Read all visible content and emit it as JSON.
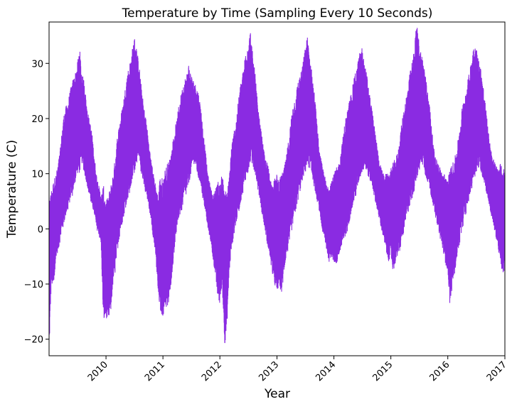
{
  "colors": {
    "series": "#8a2be2",
    "axis": "#000000",
    "background": "#ffffff"
  },
  "chart_data": {
    "type": "line",
    "title": "Temperature by Time (Sampling Every 10 Seconds)",
    "xlabel": "Year",
    "ylabel": "Temperature (C)",
    "x_ticks": [
      "2010",
      "2011",
      "2012",
      "2013",
      "2014",
      "2015",
      "2016",
      "2017"
    ],
    "y_ticks": [
      -20,
      -10,
      0,
      10,
      20,
      30
    ],
    "xlim": [
      "2009-01-01",
      "2017-01-01"
    ],
    "ylim": [
      -23,
      37.5
    ],
    "grid": false,
    "legend": "none",
    "series": [
      {
        "x": [
          "2009-01-01",
          "2009-01-15",
          "2009-02-01",
          "2009-02-15",
          "2009-03-01",
          "2009-03-15",
          "2009-04-01",
          "2009-04-15",
          "2009-05-01",
          "2009-05-15",
          "2009-06-01",
          "2009-06-15",
          "2009-07-01",
          "2009-07-15",
          "2009-08-01",
          "2009-08-15",
          "2009-09-01",
          "2009-09-15",
          "2009-10-01",
          "2009-10-15",
          "2009-11-01",
          "2009-11-15",
          "2009-12-01",
          "2009-12-15",
          "2010-01-01",
          "2010-01-15",
          "2010-02-01",
          "2010-02-15",
          "2010-03-01",
          "2010-03-15",
          "2010-04-01",
          "2010-04-15",
          "2010-05-01",
          "2010-05-15",
          "2010-06-01",
          "2010-06-15",
          "2010-07-01",
          "2010-07-15",
          "2010-08-01",
          "2010-08-15",
          "2010-09-01",
          "2010-09-15",
          "2010-10-01",
          "2010-10-15",
          "2010-11-01",
          "2010-11-15",
          "2010-12-01",
          "2010-12-15",
          "2011-01-01",
          "2011-01-15",
          "2011-02-01",
          "2011-02-15",
          "2011-03-01",
          "2011-03-15",
          "2011-04-01",
          "2011-04-15",
          "2011-05-01",
          "2011-05-15",
          "2011-06-01",
          "2011-06-15",
          "2011-07-01",
          "2011-07-15",
          "2011-08-01",
          "2011-08-15",
          "2011-09-01",
          "2011-09-15",
          "2011-10-01",
          "2011-10-15",
          "2011-11-01",
          "2011-11-15",
          "2011-12-01",
          "2011-12-15",
          "2012-01-01",
          "2012-01-15",
          "2012-02-01",
          "2012-02-15",
          "2012-03-01",
          "2012-03-15",
          "2012-04-01",
          "2012-04-15",
          "2012-05-01",
          "2012-05-15",
          "2012-06-01",
          "2012-06-15",
          "2012-07-01",
          "2012-07-15",
          "2012-08-01",
          "2012-08-15",
          "2012-09-01",
          "2012-09-15",
          "2012-10-01",
          "2012-10-15",
          "2012-11-01",
          "2012-11-15",
          "2012-12-01",
          "2012-12-15",
          "2013-01-01",
          "2013-01-15",
          "2013-02-01",
          "2013-02-15",
          "2013-03-01",
          "2013-03-15",
          "2013-04-01",
          "2013-04-15",
          "2013-05-01",
          "2013-05-15",
          "2013-06-01",
          "2013-06-15",
          "2013-07-01",
          "2013-07-15",
          "2013-08-01",
          "2013-08-15",
          "2013-09-01",
          "2013-09-15",
          "2013-10-01",
          "2013-10-15",
          "2013-11-01",
          "2013-11-15",
          "2013-12-01",
          "2013-12-15",
          "2014-01-01",
          "2014-01-15",
          "2014-02-01",
          "2014-02-15",
          "2014-03-01",
          "2014-03-15",
          "2014-04-01",
          "2014-04-15",
          "2014-05-01",
          "2014-05-15",
          "2014-06-01",
          "2014-06-15",
          "2014-07-01",
          "2014-07-15",
          "2014-08-01",
          "2014-08-15",
          "2014-09-01",
          "2014-09-15",
          "2014-10-01",
          "2014-10-15",
          "2014-11-01",
          "2014-11-15",
          "2014-12-01",
          "2014-12-15",
          "2015-01-01",
          "2015-01-15",
          "2015-02-01",
          "2015-02-15",
          "2015-03-01",
          "2015-03-15",
          "2015-04-01",
          "2015-04-15",
          "2015-05-01",
          "2015-05-15",
          "2015-06-01",
          "2015-06-15",
          "2015-07-01",
          "2015-07-15",
          "2015-08-01",
          "2015-08-15",
          "2015-09-01",
          "2015-09-15",
          "2015-10-01",
          "2015-10-15",
          "2015-11-01",
          "2015-11-15",
          "2015-12-01",
          "2015-12-15",
          "2016-01-01",
          "2016-01-15",
          "2016-02-01",
          "2016-02-15",
          "2016-03-01",
          "2016-03-15",
          "2016-04-01",
          "2016-04-15",
          "2016-05-01",
          "2016-05-15",
          "2016-06-01",
          "2016-06-15",
          "2016-07-01",
          "2016-07-15",
          "2016-08-01",
          "2016-08-15",
          "2016-09-01",
          "2016-09-15",
          "2016-10-01",
          "2016-10-15",
          "2016-11-01",
          "2016-11-15",
          "2016-12-01",
          "2016-12-15",
          "2017-01-01"
        ],
        "y_low": [
          -22.8,
          -10,
          -11,
          -5,
          -4,
          -2,
          0,
          2,
          3,
          5,
          6,
          8,
          10,
          10,
          12,
          10,
          8,
          6,
          4,
          3,
          0,
          -1,
          -3,
          -17,
          -16,
          -17,
          -15,
          -10,
          -8,
          -4,
          -1,
          1,
          3,
          5,
          6,
          8,
          10,
          12,
          12,
          10,
          8,
          6,
          4,
          2,
          -2,
          -5,
          -12,
          -15,
          -16,
          -14,
          -15,
          -12,
          -8,
          -4,
          0,
          2,
          3,
          5,
          6,
          8,
          10,
          12,
          11,
          9,
          8,
          5,
          3,
          0,
          -2,
          -5,
          -8,
          -12,
          -14,
          -10,
          -21,
          -18,
          -8,
          -4,
          -1,
          1,
          3,
          5,
          7,
          9,
          10,
          12,
          11,
          10,
          7,
          5,
          2,
          0,
          -3,
          -5,
          -8,
          -10,
          -12,
          -10,
          -12,
          -8,
          -5,
          -4,
          -1,
          1,
          3,
          5,
          7,
          9,
          10,
          11,
          11,
          9,
          7,
          5,
          3,
          0,
          -2,
          -4,
          -6,
          -5,
          -6,
          -7,
          -5,
          -4,
          -3,
          -2,
          0,
          2,
          4,
          5,
          7,
          9,
          10,
          11,
          10,
          9,
          8,
          6,
          4,
          2,
          0,
          -2,
          -4,
          -6,
          -5,
          -8,
          -6,
          -5,
          -4,
          -2,
          0,
          2,
          4,
          5,
          7,
          9,
          10,
          12,
          11,
          9,
          8,
          6,
          4,
          2,
          0,
          -2,
          -4,
          -6,
          -8,
          -14,
          -10,
          -8,
          -5,
          -3,
          -1,
          2,
          3,
          5,
          7,
          9,
          10,
          11,
          10,
          9,
          7,
          5,
          3,
          1,
          -1,
          -3,
          -6,
          -8,
          -8
        ],
        "y_high": [
          5,
          7,
          9,
          10,
          12,
          15,
          20,
          22,
          23,
          25,
          27,
          28,
          30,
          33,
          28,
          27,
          22,
          20,
          18,
          14,
          10,
          8,
          6,
          8,
          5,
          6,
          8,
          10,
          13,
          17,
          20,
          22,
          25,
          28,
          30,
          32,
          35,
          33,
          30,
          26,
          22,
          20,
          16,
          13,
          10,
          8,
          6,
          10,
          9,
          11,
          12,
          13,
          15,
          18,
          20,
          23,
          25,
          27,
          28,
          30,
          28,
          27,
          26,
          25,
          22,
          18,
          14,
          10,
          8,
          6,
          7,
          9,
          8,
          10,
          8,
          6,
          10,
          15,
          18,
          20,
          24,
          27,
          29,
          33,
          34,
          36,
          31,
          28,
          22,
          19,
          16,
          13,
          12,
          10,
          8,
          9,
          10,
          9,
          10,
          11,
          13,
          16,
          20,
          23,
          24,
          27,
          28,
          30,
          33,
          35,
          31,
          28,
          24,
          19,
          14,
          12,
          10,
          8,
          8,
          9,
          10,
          11,
          12,
          14,
          17,
          20,
          22,
          24,
          26,
          28,
          30,
          32,
          33,
          30,
          28,
          25,
          22,
          19,
          16,
          13,
          11,
          10,
          10,
          10,
          11,
          12,
          13,
          14,
          17,
          20,
          23,
          25,
          28,
          30,
          33,
          37.5,
          34,
          32,
          30,
          27,
          24,
          20,
          15,
          13,
          12,
          11,
          10,
          10,
          9,
          11,
          12,
          13,
          15,
          18,
          22,
          24,
          26,
          28,
          31,
          34,
          33,
          31,
          29,
          26,
          22,
          18,
          15,
          13,
          12,
          11,
          12,
          11,
          11
        ]
      }
    ]
  }
}
